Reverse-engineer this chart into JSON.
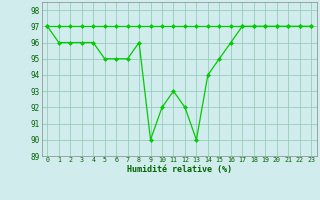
{
  "x": [
    0,
    1,
    2,
    3,
    4,
    5,
    6,
    7,
    8,
    9,
    10,
    11,
    12,
    13,
    14,
    15,
    16,
    17,
    18,
    19,
    20,
    21,
    22,
    23
  ],
  "y_line1": [
    97,
    97,
    97,
    97,
    97,
    97,
    97,
    97,
    97,
    97,
    97,
    97,
    97,
    97,
    97,
    97,
    97,
    97,
    97,
    97,
    97,
    97,
    97,
    97
  ],
  "y_line2": [
    97,
    96,
    96,
    96,
    96,
    95,
    95,
    95,
    96,
    90,
    92,
    93,
    92,
    90,
    94,
    95,
    96,
    97,
    97,
    97,
    97,
    97,
    97,
    97
  ],
  "line_color": "#00cc00",
  "bg_color": "#d0ecec",
  "grid_color": "#99ccbb",
  "xlabel": "Humidité relative (%)",
  "xlabel_color": "#006600",
  "tick_color": "#006600",
  "ylim": [
    89,
    98.5
  ],
  "xlim": [
    -0.5,
    23.5
  ],
  "yticks": [
    89,
    90,
    91,
    92,
    93,
    94,
    95,
    96,
    97,
    98
  ],
  "xticks": [
    0,
    1,
    2,
    3,
    4,
    5,
    6,
    7,
    8,
    9,
    10,
    11,
    12,
    13,
    14,
    15,
    16,
    17,
    18,
    19,
    20,
    21,
    22,
    23
  ]
}
